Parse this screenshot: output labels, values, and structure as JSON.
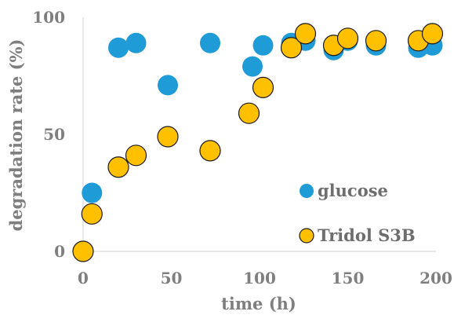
{
  "chart_data": {
    "type": "scatter",
    "xlabel": "time (h)",
    "ylabel": "degradation rate (%)",
    "xlim": [
      0,
      200
    ],
    "ylim": [
      0,
      100
    ],
    "xticks": [
      "0",
      "50",
      "100",
      "150",
      "200"
    ],
    "yticks": [
      "0",
      "50",
      "100"
    ],
    "grid": false,
    "legend_position": "lower-right",
    "series": [
      {
        "name": "glucose",
        "color": "#1f9bd7",
        "outline": "#1f9bd7",
        "points": [
          {
            "x": 5,
            "y": 25
          },
          {
            "x": 20,
            "y": 87
          },
          {
            "x": 30,
            "y": 89
          },
          {
            "x": 48,
            "y": 71
          },
          {
            "x": 72,
            "y": 89
          },
          {
            "x": 96,
            "y": 79
          },
          {
            "x": 102,
            "y": 88
          },
          {
            "x": 118,
            "y": 89
          },
          {
            "x": 126,
            "y": 90
          },
          {
            "x": 142,
            "y": 86
          },
          {
            "x": 150,
            "y": 90
          },
          {
            "x": 166,
            "y": 88
          },
          {
            "x": 190,
            "y": 87
          },
          {
            "x": 198,
            "y": 88
          }
        ]
      },
      {
        "name": "Tridol S3B",
        "color": "#ffc000",
        "outline": "#1a1a1a",
        "points": [
          {
            "x": 0,
            "y": 0
          },
          {
            "x": 5,
            "y": 16
          },
          {
            "x": 20,
            "y": 36
          },
          {
            "x": 30,
            "y": 41
          },
          {
            "x": 48,
            "y": 49
          },
          {
            "x": 72,
            "y": 43
          },
          {
            "x": 94,
            "y": 59
          },
          {
            "x": 102,
            "y": 70
          },
          {
            "x": 118,
            "y": 87
          },
          {
            "x": 126,
            "y": 93
          },
          {
            "x": 142,
            "y": 88
          },
          {
            "x": 150,
            "y": 91
          },
          {
            "x": 166,
            "y": 90
          },
          {
            "x": 190,
            "y": 90
          },
          {
            "x": 198,
            "y": 93
          }
        ]
      }
    ]
  }
}
